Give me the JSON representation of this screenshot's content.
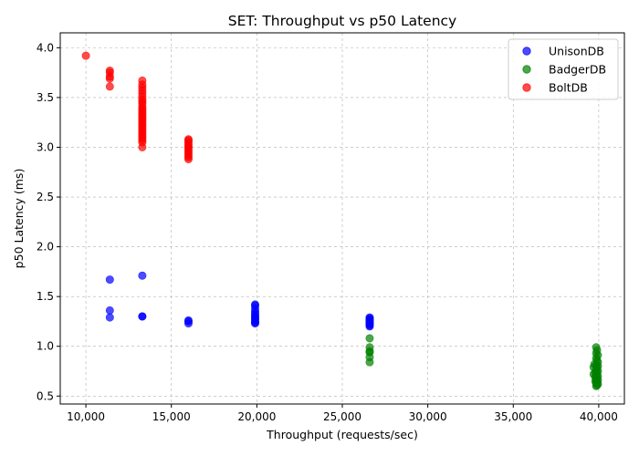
{
  "chart_data": {
    "type": "scatter",
    "title": "SET: Throughput vs p50 Latency",
    "xlabel": "Throughput (requests/sec)",
    "ylabel": "p50 Latency (ms)",
    "xlim": [
      8500,
      41500
    ],
    "ylim": [
      0.42,
      4.15
    ],
    "xticks": [
      10000,
      15000,
      20000,
      25000,
      30000,
      35000,
      40000
    ],
    "xtick_labels": [
      "10,000",
      "15,000",
      "20,000",
      "25,000",
      "30,000",
      "35,000",
      "40,000"
    ],
    "yticks": [
      0.5,
      1.0,
      1.5,
      2.0,
      2.5,
      3.0,
      3.5,
      4.0
    ],
    "ytick_labels": [
      "0.5",
      "1.0",
      "1.5",
      "2.0",
      "2.5",
      "3.0",
      "3.5",
      "4.0"
    ],
    "grid": true,
    "legend_position": "top-right",
    "series": [
      {
        "name": "UnisonDB",
        "color": "#0000ff",
        "points": [
          [
            11400,
            1.67
          ],
          [
            11400,
            1.36
          ],
          [
            11400,
            1.29
          ],
          [
            13300,
            1.71
          ],
          [
            13300,
            1.3
          ],
          [
            13300,
            1.3
          ],
          [
            16000,
            1.26
          ],
          [
            16000,
            1.25
          ],
          [
            16000,
            1.23
          ],
          [
            19900,
            1.42
          ],
          [
            19900,
            1.41
          ],
          [
            19900,
            1.38
          ],
          [
            19900,
            1.35
          ],
          [
            19900,
            1.33
          ],
          [
            19900,
            1.31
          ],
          [
            19900,
            1.3
          ],
          [
            19900,
            1.28
          ],
          [
            19900,
            1.27
          ],
          [
            19900,
            1.25
          ],
          [
            19900,
            1.24
          ],
          [
            19900,
            1.23
          ],
          [
            26600,
            1.29
          ],
          [
            26600,
            1.28
          ],
          [
            26600,
            1.27
          ],
          [
            26600,
            1.26
          ],
          [
            26600,
            1.25
          ],
          [
            26600,
            1.24
          ],
          [
            26600,
            1.23
          ],
          [
            26600,
            1.22
          ],
          [
            26600,
            1.21
          ],
          [
            26600,
            1.2
          ]
        ]
      },
      {
        "name": "BadgerDB",
        "color": "#008000",
        "points": [
          [
            26600,
            1.08
          ],
          [
            26600,
            0.99
          ],
          [
            26600,
            0.95
          ],
          [
            26600,
            0.94
          ],
          [
            26600,
            0.89
          ],
          [
            26600,
            0.84
          ],
          [
            39850,
            0.99
          ],
          [
            39900,
            0.96
          ],
          [
            39850,
            0.93
          ],
          [
            39950,
            0.91
          ],
          [
            39850,
            0.88
          ],
          [
            39900,
            0.86
          ],
          [
            39950,
            0.84
          ],
          [
            39750,
            0.82
          ],
          [
            39850,
            0.81
          ],
          [
            39950,
            0.8
          ],
          [
            39700,
            0.79
          ],
          [
            39900,
            0.78
          ],
          [
            39850,
            0.76
          ],
          [
            39950,
            0.75
          ],
          [
            39800,
            0.74
          ],
          [
            39900,
            0.73
          ],
          [
            39700,
            0.72
          ],
          [
            39850,
            0.71
          ],
          [
            39950,
            0.7
          ],
          [
            39800,
            0.69
          ],
          [
            39900,
            0.68
          ],
          [
            39850,
            0.67
          ],
          [
            39950,
            0.66
          ],
          [
            39800,
            0.65
          ],
          [
            39900,
            0.64
          ],
          [
            39850,
            0.63
          ],
          [
            39950,
            0.62
          ],
          [
            39900,
            0.61
          ],
          [
            39850,
            0.6
          ]
        ]
      },
      {
        "name": "BoltDB",
        "color": "#ff0000",
        "points": [
          [
            10000,
            3.92
          ],
          [
            11400,
            3.77
          ],
          [
            11400,
            3.75
          ],
          [
            11400,
            3.71
          ],
          [
            11400,
            3.69
          ],
          [
            11400,
            3.61
          ],
          [
            13300,
            3.67
          ],
          [
            13300,
            3.63
          ],
          [
            13300,
            3.6
          ],
          [
            13300,
            3.57
          ],
          [
            13300,
            3.54
          ],
          [
            13300,
            3.51
          ],
          [
            13300,
            3.48
          ],
          [
            13300,
            3.46
          ],
          [
            13300,
            3.44
          ],
          [
            13300,
            3.41
          ],
          [
            13300,
            3.39
          ],
          [
            13300,
            3.37
          ],
          [
            13300,
            3.35
          ],
          [
            13300,
            3.33
          ],
          [
            13300,
            3.31
          ],
          [
            13300,
            3.29
          ],
          [
            13300,
            3.27
          ],
          [
            13300,
            3.25
          ],
          [
            13300,
            3.23
          ],
          [
            13300,
            3.21
          ],
          [
            13300,
            3.19
          ],
          [
            13300,
            3.17
          ],
          [
            13300,
            3.15
          ],
          [
            13300,
            3.13
          ],
          [
            13300,
            3.11
          ],
          [
            13300,
            3.09
          ],
          [
            13300,
            3.07
          ],
          [
            13300,
            3.05
          ],
          [
            13300,
            3.0
          ],
          [
            16000,
            3.08
          ],
          [
            16000,
            3.07
          ],
          [
            16000,
            3.05
          ],
          [
            16000,
            3.03
          ],
          [
            16000,
            3.01
          ],
          [
            16000,
            3.0
          ],
          [
            16000,
            2.98
          ],
          [
            16000,
            2.96
          ],
          [
            16000,
            2.94
          ],
          [
            16000,
            2.92
          ],
          [
            16000,
            2.9
          ],
          [
            16000,
            2.88
          ]
        ]
      }
    ]
  }
}
